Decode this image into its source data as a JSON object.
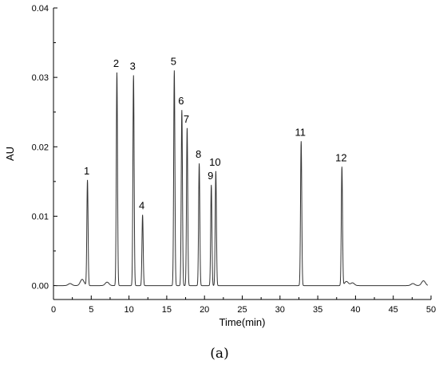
{
  "chart_data": {
    "type": "line",
    "title": "",
    "xlabel": "Time(min)",
    "ylabel": "AU",
    "xlim": [
      0,
      50
    ],
    "ylim": [
      -0.002,
      0.04
    ],
    "x_ticks": [
      0,
      5,
      10,
      15,
      20,
      25,
      30,
      35,
      40,
      45,
      50
    ],
    "y_ticks": [
      0.0,
      0.01,
      0.02,
      0.03,
      0.04
    ],
    "y_tick_labels": [
      "0.00",
      "0.01",
      "0.02",
      "0.03",
      "0.04"
    ],
    "grid": false,
    "line_color": "#333333",
    "baseline": 0.0,
    "peaks": [
      {
        "label": "1",
        "x": 4.5,
        "y": 0.0152
      },
      {
        "label": "2",
        "x": 8.4,
        "y": 0.0307
      },
      {
        "label": "3",
        "x": 10.6,
        "y": 0.0303
      },
      {
        "label": "4",
        "x": 11.8,
        "y": 0.0102
      },
      {
        "label": "5",
        "x": 16.0,
        "y": 0.031
      },
      {
        "label": "6",
        "x": 17.0,
        "y": 0.0253
      },
      {
        "label": "7",
        "x": 17.7,
        "y": 0.0227
      },
      {
        "label": "8",
        "x": 19.3,
        "y": 0.0176
      },
      {
        "label": "9",
        "x": 20.9,
        "y": 0.0145
      },
      {
        "label": "10",
        "x": 21.5,
        "y": 0.0165
      },
      {
        "label": "11",
        "x": 32.8,
        "y": 0.0208
      },
      {
        "label": "12",
        "x": 38.2,
        "y": 0.0171
      }
    ],
    "minor_bumps": [
      {
        "x": 2.2,
        "y": 0.0003
      },
      {
        "x": 3.8,
        "y": 0.0009
      },
      {
        "x": 7.1,
        "y": 0.0005
      },
      {
        "x": 38.8,
        "y": 0.0006
      },
      {
        "x": 39.6,
        "y": 0.0004
      },
      {
        "x": 47.6,
        "y": 0.0003
      },
      {
        "x": 49.0,
        "y": 0.0007
      }
    ]
  },
  "caption": "(a)"
}
